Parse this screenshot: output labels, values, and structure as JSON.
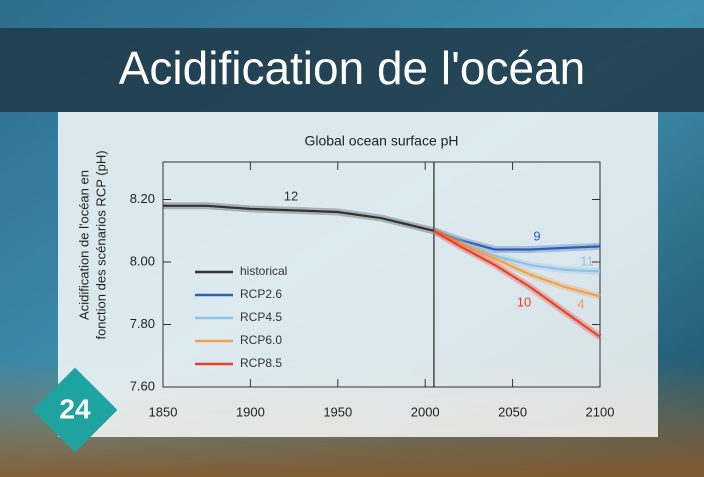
{
  "slide": {
    "title": "Acidification de l'océan",
    "number": "24"
  },
  "chart_data": {
    "type": "line",
    "title": "Global ocean surface pH",
    "y_label": [
      "Acidification de l'océan en",
      "fonction des scénarios RCP (pH)"
    ],
    "x": [
      1850,
      1875,
      1900,
      1925,
      1950,
      1975,
      1990,
      2005,
      2020,
      2040,
      2060,
      2080,
      2100
    ],
    "series": [
      {
        "name": "historical",
        "color": "#333333",
        "values": [
          8.18,
          8.18,
          8.17,
          8.165,
          8.16,
          8.14,
          8.12,
          8.1,
          null,
          null,
          null,
          null,
          null
        ]
      },
      {
        "name": "RCP2.6",
        "color": "#2f5fb3",
        "values": [
          null,
          null,
          null,
          null,
          null,
          null,
          null,
          8.1,
          8.07,
          8.04,
          8.04,
          8.045,
          8.05
        ]
      },
      {
        "name": "RCP4.5",
        "color": "#8ec3ea",
        "values": [
          null,
          null,
          null,
          null,
          null,
          null,
          null,
          8.1,
          8.06,
          8.02,
          7.99,
          7.975,
          7.97
        ]
      },
      {
        "name": "RCP6.0",
        "color": "#f0a050",
        "values": [
          null,
          null,
          null,
          null,
          null,
          null,
          null,
          8.1,
          8.06,
          8.01,
          7.96,
          7.92,
          7.89
        ]
      },
      {
        "name": "RCP8.5",
        "color": "#e8402a",
        "values": [
          null,
          null,
          null,
          null,
          null,
          null,
          null,
          8.1,
          8.05,
          7.99,
          7.92,
          7.84,
          7.76
        ]
      }
    ],
    "annotations": [
      {
        "text": "12",
        "color": "#333333"
      },
      {
        "text": "9",
        "color": "#2f5fb3"
      },
      {
        "text": "11",
        "color": "#8ec3ea"
      },
      {
        "text": "4",
        "color": "#f0a050"
      },
      {
        "text": "10",
        "color": "#e8402a"
      }
    ],
    "divider_x": 2005,
    "xlim": [
      1850,
      2100
    ],
    "xticks": [
      1850,
      1900,
      1950,
      2000,
      2050,
      2100
    ],
    "ylim": [
      7.6,
      8.32
    ],
    "yticks": [
      {
        "value": 7.6,
        "label": "7.60"
      },
      {
        "value": 7.8,
        "label": "7.80"
      },
      {
        "value": 8.0,
        "label": "8.00"
      },
      {
        "value": 8.2,
        "label": "8.20"
      }
    ],
    "legend": "lower-left"
  }
}
